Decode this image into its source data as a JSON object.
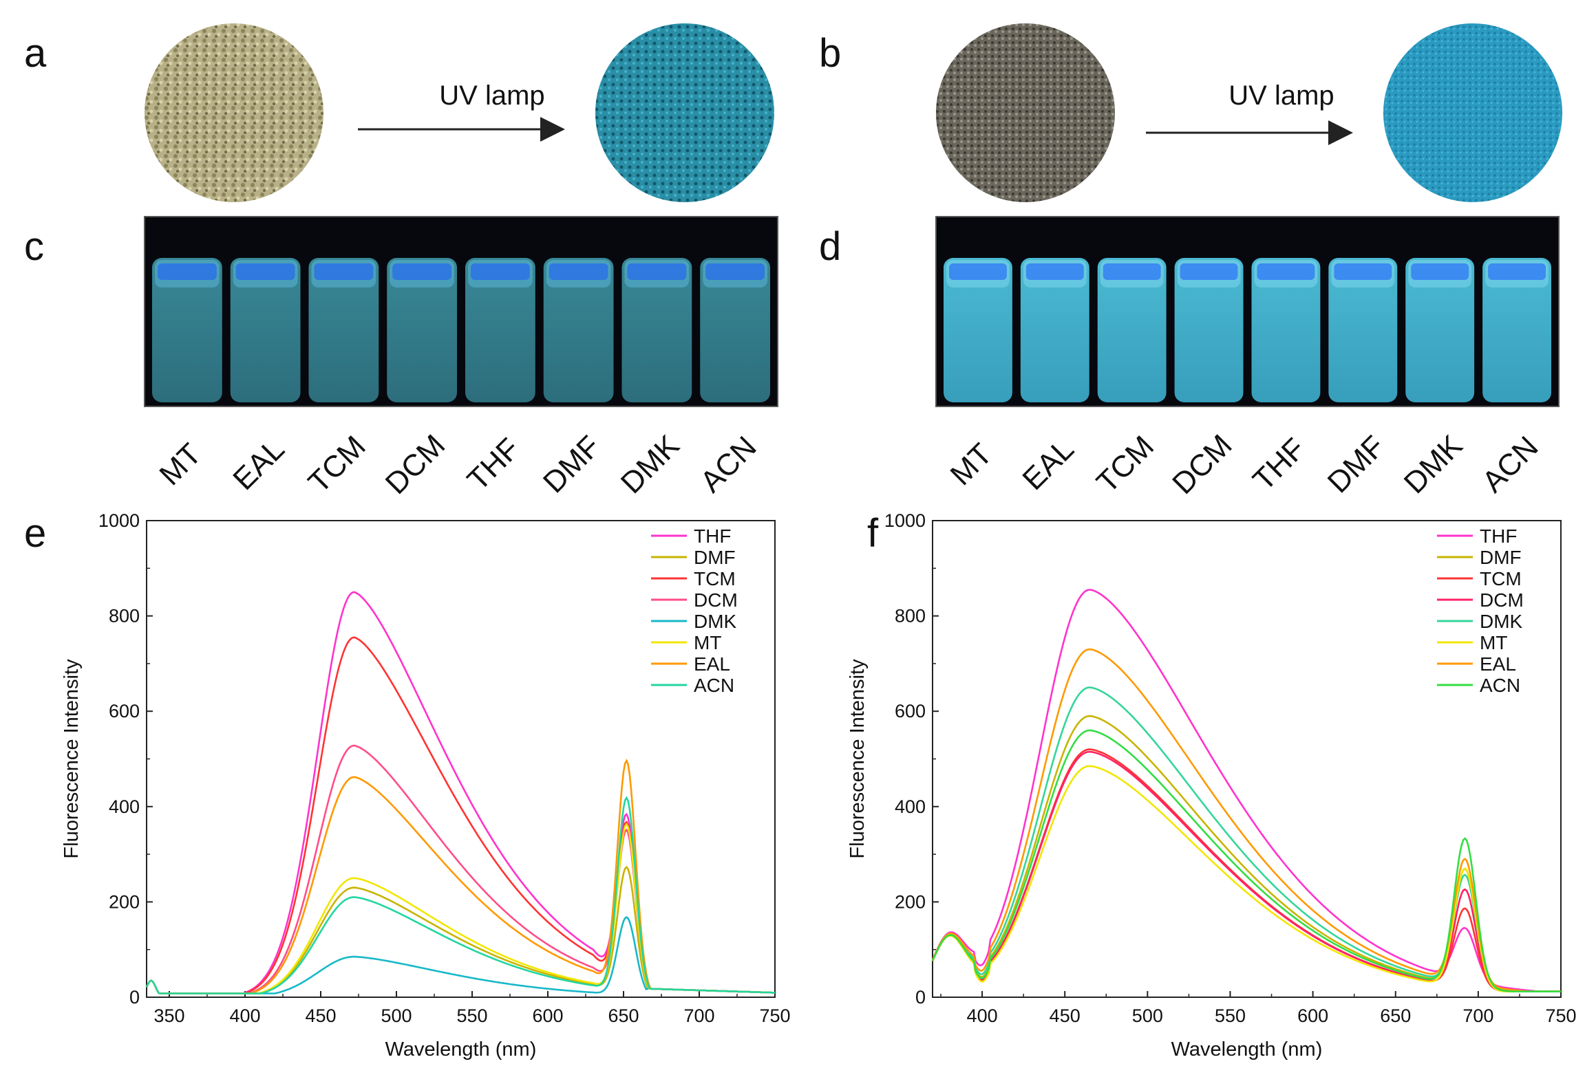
{
  "panels": {
    "a": "a",
    "b": "b",
    "c": "c",
    "d": "d",
    "e": "e",
    "f": "f"
  },
  "uv_label": "UV lamp",
  "solvents_order": [
    "MT",
    "EAL",
    "TCM",
    "DCM",
    "THF",
    "DMF",
    "DMK",
    "ACN"
  ],
  "colors": {
    "THF": "#ff33cc",
    "DMF": "#c8b400",
    "TCM": "#ff3333",
    "DCM": "#ff4d88",
    "DMK": "#17b8c8",
    "MT": "#f2e600",
    "EAL": "#ff9900",
    "ACN": "#22d6a0",
    "DCM_f": "#ff2266",
    "DMK_f": "#33d699",
    "ACN_f": "#33dd44"
  },
  "chart_data": [
    {
      "id": "e",
      "type": "line",
      "xlabel": "Wavelength (nm)",
      "ylabel": "Fluorescence Intensity",
      "xlim": [
        335,
        750
      ],
      "ylim": [
        0,
        1000
      ],
      "xticks": [
        350,
        400,
        450,
        500,
        550,
        600,
        650,
        700,
        750
      ],
      "yticks": [
        0,
        200,
        400,
        600,
        800,
        1000
      ],
      "legend": [
        "THF",
        "DMF",
        "TCM",
        "DCM",
        "DMK",
        "MT",
        "EAL",
        "ACN"
      ],
      "legend_position": "top-right",
      "series": [
        {
          "name": "THF",
          "peak": 850,
          "second_peak": 385,
          "valley": 62
        },
        {
          "name": "DMF",
          "peak": 230,
          "second_peak": 285,
          "valley": 40
        },
        {
          "name": "TCM",
          "peak": 755,
          "second_peak": 370,
          "valley": 58
        },
        {
          "name": "DCM",
          "peak": 528,
          "second_peak": 360,
          "valley": 55
        },
        {
          "name": "DMK",
          "peak": 85,
          "second_peak": 170,
          "valley": 10
        },
        {
          "name": "MT",
          "peak": 250,
          "second_peak": 375,
          "valley": 42
        },
        {
          "name": "EAL",
          "peak": 462,
          "second_peak": 505,
          "valley": 50
        },
        {
          "name": "ACN",
          "peak": 210,
          "second_peak": 430,
          "valley": 38
        }
      ]
    },
    {
      "id": "f",
      "type": "line",
      "xlabel": "Wavelength (nm)",
      "ylabel": "Fluorescence Intensity",
      "xlim": [
        370,
        750
      ],
      "ylim": [
        0,
        1000
      ],
      "xticks": [
        400,
        450,
        500,
        550,
        600,
        650,
        700,
        750
      ],
      "yticks": [
        0,
        200,
        400,
        600,
        800,
        1000
      ],
      "legend": [
        "THF",
        "DMF",
        "TCM",
        "DCM",
        "DMK",
        "MT",
        "EAL",
        "ACN"
      ],
      "legend_position": "top-right",
      "series": [
        {
          "name": "THF",
          "peak": 855,
          "second_peak": 110
        },
        {
          "name": "DMF",
          "peak": 590,
          "second_peak": 245
        },
        {
          "name": "TCM",
          "peak": 520,
          "second_peak": 165
        },
        {
          "name": "DCM",
          "peak": 515,
          "second_peak": 205
        },
        {
          "name": "DMK",
          "peak": 650,
          "second_peak": 230
        },
        {
          "name": "MT",
          "peak": 485,
          "second_peak": 250
        },
        {
          "name": "EAL",
          "peak": 730,
          "second_peak": 260
        },
        {
          "name": "ACN",
          "peak": 560,
          "second_peak": 310
        }
      ]
    }
  ]
}
